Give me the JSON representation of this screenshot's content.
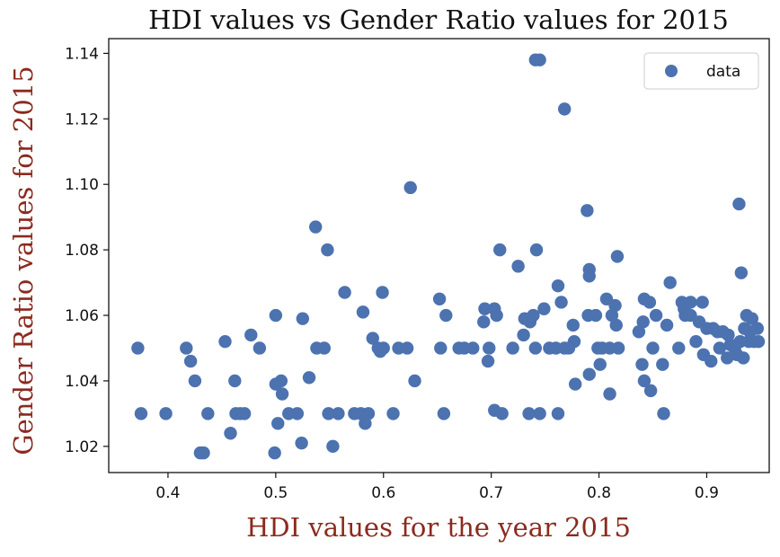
{
  "chart_data": {
    "type": "scatter",
    "title": "HDI values vs Gender Ratio values for 2015",
    "xlabel": "HDI values for the year 2015",
    "ylabel": "Gender Ratio values for 2015",
    "xlim": [
      0.345,
      0.958
    ],
    "ylim": [
      1.012,
      1.1445
    ],
    "x_ticks": [
      0.4,
      0.5,
      0.6,
      0.7,
      0.8,
      0.9
    ],
    "x_tick_labels": [
      "0.4",
      "0.5",
      "0.6",
      "0.7",
      "0.8",
      "0.9"
    ],
    "y_ticks": [
      1.02,
      1.04,
      1.06,
      1.08,
      1.1,
      1.12,
      1.14
    ],
    "y_tick_labels": [
      "1.02",
      "1.04",
      "1.06",
      "1.08",
      "1.10",
      "1.12",
      "1.14"
    ],
    "grid": false,
    "legend": {
      "position": "top-right",
      "entries": [
        "data"
      ]
    },
    "series": [
      {
        "name": "data",
        "color": "#4c72b0",
        "points": [
          [
            0.372,
            1.05
          ],
          [
            0.375,
            1.03
          ],
          [
            0.398,
            1.03
          ],
          [
            0.417,
            1.05
          ],
          [
            0.421,
            1.046
          ],
          [
            0.425,
            1.04
          ],
          [
            0.43,
            1.018
          ],
          [
            0.433,
            1.018
          ],
          [
            0.437,
            1.03
          ],
          [
            0.453,
            1.052
          ],
          [
            0.458,
            1.024
          ],
          [
            0.462,
            1.04
          ],
          [
            0.463,
            1.03
          ],
          [
            0.467,
            1.03
          ],
          [
            0.471,
            1.03
          ],
          [
            0.477,
            1.054
          ],
          [
            0.485,
            1.05
          ],
          [
            0.5,
            1.06
          ],
          [
            0.5,
            1.039
          ],
          [
            0.499,
            1.018
          ],
          [
            0.502,
            1.027
          ],
          [
            0.505,
            1.04
          ],
          [
            0.506,
            1.036
          ],
          [
            0.512,
            1.03
          ],
          [
            0.52,
            1.03
          ],
          [
            0.524,
            1.021
          ],
          [
            0.525,
            1.059
          ],
          [
            0.531,
            1.041
          ],
          [
            0.537,
            1.087
          ],
          [
            0.538,
            1.05
          ],
          [
            0.545,
            1.05
          ],
          [
            0.548,
            1.08
          ],
          [
            0.549,
            1.03
          ],
          [
            0.553,
            1.02
          ],
          [
            0.558,
            1.03
          ],
          [
            0.564,
            1.067
          ],
          [
            0.573,
            1.03
          ],
          [
            0.579,
            1.03
          ],
          [
            0.581,
            1.061
          ],
          [
            0.583,
            1.027
          ],
          [
            0.586,
            1.03
          ],
          [
            0.59,
            1.053
          ],
          [
            0.595,
            1.05
          ],
          [
            0.597,
            1.049
          ],
          [
            0.599,
            1.067
          ],
          [
            0.6,
            1.05
          ],
          [
            0.609,
            1.03
          ],
          [
            0.614,
            1.05
          ],
          [
            0.622,
            1.05
          ],
          [
            0.625,
            1.099
          ],
          [
            0.629,
            1.04
          ],
          [
            0.652,
            1.065
          ],
          [
            0.653,
            1.05
          ],
          [
            0.656,
            1.03
          ],
          [
            0.658,
            1.06
          ],
          [
            0.67,
            1.05
          ],
          [
            0.675,
            1.05
          ],
          [
            0.683,
            1.05
          ],
          [
            0.693,
            1.058
          ],
          [
            0.694,
            1.062
          ],
          [
            0.697,
            1.046
          ],
          [
            0.698,
            1.05
          ],
          [
            0.703,
            1.062
          ],
          [
            0.703,
            1.031
          ],
          [
            0.705,
            1.06
          ],
          [
            0.708,
            1.08
          ],
          [
            0.71,
            1.03
          ],
          [
            0.72,
            1.05
          ],
          [
            0.725,
            1.075
          ],
          [
            0.73,
            1.054
          ],
          [
            0.731,
            1.059
          ],
          [
            0.735,
            1.03
          ],
          [
            0.736,
            1.058
          ],
          [
            0.739,
            1.06
          ],
          [
            0.741,
            1.138
          ],
          [
            0.741,
            1.05
          ],
          [
            0.742,
            1.08
          ],
          [
            0.745,
            1.138
          ],
          [
            0.745,
            1.03
          ],
          [
            0.749,
            1.062
          ],
          [
            0.754,
            1.05
          ],
          [
            0.76,
            1.05
          ],
          [
            0.762,
            1.069
          ],
          [
            0.762,
            1.03
          ],
          [
            0.765,
            1.064
          ],
          [
            0.768,
            1.123
          ],
          [
            0.768,
            1.05
          ],
          [
            0.772,
            1.05
          ],
          [
            0.776,
            1.057
          ],
          [
            0.777,
            1.052
          ],
          [
            0.778,
            1.039
          ],
          [
            0.789,
            1.092
          ],
          [
            0.79,
            1.06
          ],
          [
            0.791,
            1.074
          ],
          [
            0.791,
            1.072
          ],
          [
            0.791,
            1.042
          ],
          [
            0.797,
            1.06
          ],
          [
            0.799,
            1.05
          ],
          [
            0.801,
            1.045
          ],
          [
            0.803,
            1.05
          ],
          [
            0.807,
            1.065
          ],
          [
            0.81,
            1.036
          ],
          [
            0.81,
            1.05
          ],
          [
            0.812,
            1.06
          ],
          [
            0.815,
            1.063
          ],
          [
            0.816,
            1.057
          ],
          [
            0.817,
            1.078
          ],
          [
            0.818,
            1.05
          ],
          [
            0.837,
            1.055
          ],
          [
            0.84,
            1.045
          ],
          [
            0.841,
            1.058
          ],
          [
            0.842,
            1.065
          ],
          [
            0.842,
            1.04
          ],
          [
            0.847,
            1.064
          ],
          [
            0.848,
            1.037
          ],
          [
            0.85,
            1.05
          ],
          [
            0.853,
            1.06
          ],
          [
            0.859,
            1.045
          ],
          [
            0.86,
            1.03
          ],
          [
            0.863,
            1.057
          ],
          [
            0.866,
            1.07
          ],
          [
            0.874,
            1.05
          ],
          [
            0.877,
            1.064
          ],
          [
            0.879,
            1.062
          ],
          [
            0.88,
            1.06
          ],
          [
            0.885,
            1.064
          ],
          [
            0.885,
            1.06
          ],
          [
            0.89,
            1.052
          ],
          [
            0.893,
            1.058
          ],
          [
            0.896,
            1.064
          ],
          [
            0.897,
            1.048
          ],
          [
            0.9,
            1.056
          ],
          [
            0.904,
            1.046
          ],
          [
            0.906,
            1.056
          ],
          [
            0.91,
            1.055
          ],
          [
            0.912,
            1.05
          ],
          [
            0.915,
            1.055
          ],
          [
            0.919,
            1.047
          ],
          [
            0.92,
            1.054
          ],
          [
            0.922,
            1.051
          ],
          [
            0.926,
            1.05
          ],
          [
            0.928,
            1.048
          ],
          [
            0.93,
            1.094
          ],
          [
            0.931,
            1.052
          ],
          [
            0.932,
            1.073
          ],
          [
            0.934,
            1.047
          ],
          [
            0.935,
            1.056
          ],
          [
            0.937,
            1.06
          ],
          [
            0.939,
            1.052
          ],
          [
            0.94,
            1.055
          ],
          [
            0.942,
            1.059
          ],
          [
            0.944,
            1.052
          ],
          [
            0.947,
            1.056
          ],
          [
            0.948,
            1.052
          ]
        ]
      }
    ]
  }
}
